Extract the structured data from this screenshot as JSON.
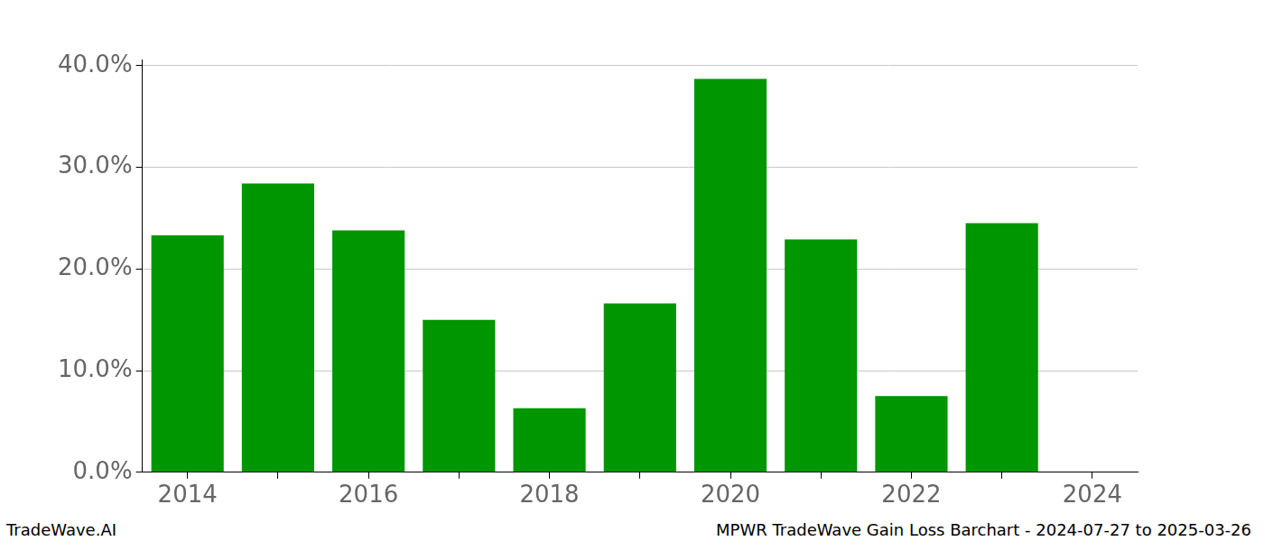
{
  "chart_data": {
    "type": "bar",
    "categories": [
      "2014",
      null,
      "2016",
      null,
      "2018",
      null,
      "2020",
      null,
      "2022",
      null,
      "2024"
    ],
    "values": [
      23.3,
      28.4,
      23.8,
      15.0,
      6.3,
      16.6,
      38.7,
      22.9,
      7.5,
      24.5,
      null
    ],
    "color": "#009600",
    "ylim": [
      0,
      40.6
    ],
    "yticks": [
      {
        "value": 0,
        "label": "0.0%"
      },
      {
        "value": 10,
        "label": "10.0%"
      },
      {
        "value": 20,
        "label": "20.0%"
      },
      {
        "value": 30,
        "label": "30.0%"
      },
      {
        "value": 40,
        "label": "40.0%"
      }
    ],
    "grid": true,
    "annotations": [
      "TradeWave.AI",
      "MPWR TradeWave Gain Loss Barchart - 2024-07-27 to 2025-03-26"
    ]
  }
}
